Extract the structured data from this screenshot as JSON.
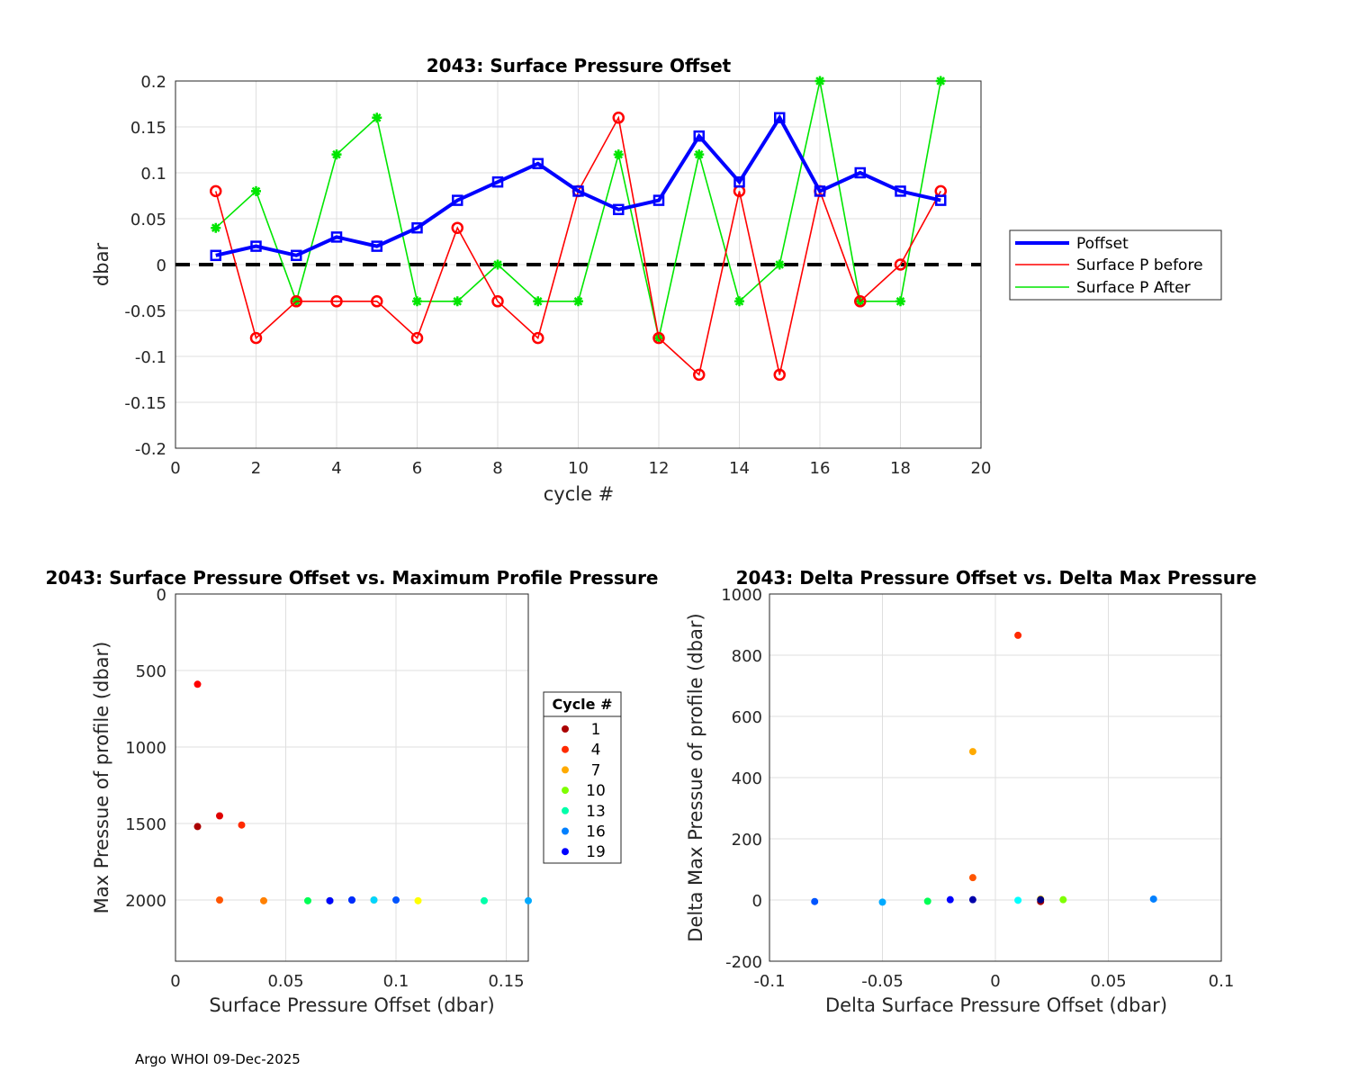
{
  "footer": "Argo WHOI 09-Dec-2025",
  "chart_data": [
    {
      "type": "line",
      "title": "2043: Surface Pressure Offset",
      "xlabel": "cycle #",
      "ylabel": "dbar",
      "xlim": [
        0,
        20
      ],
      "ylim": [
        -0.2,
        0.2
      ],
      "xticks": [
        "0",
        "2",
        "4",
        "6",
        "8",
        "10",
        "12",
        "14",
        "16",
        "18",
        "20"
      ],
      "yticks": [
        "0.2",
        "0.15",
        "0.1",
        "0.05",
        "0",
        "-0.05",
        "-0.1",
        "-0.15",
        "-0.2"
      ],
      "grid": true,
      "legend_position": "right",
      "x": [
        1,
        2,
        3,
        4,
        5,
        6,
        7,
        8,
        9,
        10,
        11,
        12,
        13,
        14,
        15,
        16,
        17,
        18,
        19
      ],
      "zero_line": {
        "y": 0,
        "style": "dashed",
        "color": "#000000"
      },
      "series": [
        {
          "name": "Poffset",
          "color": "#0000ff",
          "marker": "square",
          "values": [
            0.01,
            0.02,
            0.01,
            0.03,
            0.02,
            0.04,
            0.07,
            0.09,
            0.11,
            0.08,
            0.06,
            0.07,
            0.14,
            0.09,
            0.16,
            0.08,
            0.1,
            0.08,
            0.07
          ]
        },
        {
          "name": "Surface P before",
          "color": "#ff0000",
          "marker": "circle",
          "values": [
            0.08,
            -0.08,
            -0.04,
            -0.04,
            -0.04,
            -0.08,
            0.04,
            -0.04,
            -0.08,
            0.08,
            0.16,
            -0.08,
            -0.12,
            0.08,
            -0.12,
            0.08,
            -0.04,
            0.0,
            0.08
          ]
        },
        {
          "name": "Surface P After",
          "color": "#00e600",
          "marker": "asterisk",
          "values": [
            0.04,
            0.08,
            -0.04,
            0.12,
            0.16,
            -0.04,
            -0.04,
            0.0,
            -0.04,
            -0.04,
            0.12,
            -0.08,
            0.12,
            -0.04,
            0.0,
            0.2,
            -0.04,
            -0.04,
            0.2
          ]
        }
      ]
    },
    {
      "type": "scatter",
      "title": "2043: Surface Pressure Offset vs. Maximum Profile Pressure",
      "xlabel": "Surface Pressure Offset (dbar)",
      "ylabel": "Max Pressue of profile (dbar)",
      "xlim": [
        0,
        0.16
      ],
      "ylim": [
        0,
        2400
      ],
      "y_reversed": true,
      "xticks": [
        "0",
        "0.05",
        "0.1",
        "0.15"
      ],
      "yticks": [
        "0",
        "500",
        "1000",
        "1500",
        "2000"
      ],
      "grid": true,
      "legend_title": "Cycle #",
      "legend_position": "right",
      "legend_entries": [
        {
          "label": "1",
          "color": "#aa0000"
        },
        {
          "label": "4",
          "color": "#ff2a00"
        },
        {
          "label": "7",
          "color": "#ffaa00"
        },
        {
          "label": "10",
          "color": "#7fff00"
        },
        {
          "label": "13",
          "color": "#00ffaa"
        },
        {
          "label": "16",
          "color": "#0080ff"
        },
        {
          "label": "19",
          "color": "#0000ff"
        }
      ],
      "points": [
        {
          "cycle": 1,
          "x": 0.01,
          "y": 1520,
          "color": "#aa0000"
        },
        {
          "cycle": 2,
          "x": 0.02,
          "y": 1450,
          "color": "#e00000"
        },
        {
          "cycle": 3,
          "x": 0.01,
          "y": 590,
          "color": "#ff0000"
        },
        {
          "cycle": 4,
          "x": 0.03,
          "y": 1510,
          "color": "#ff2a00"
        },
        {
          "cycle": 5,
          "x": 0.02,
          "y": 2000,
          "color": "#ff5500"
        },
        {
          "cycle": 6,
          "x": 0.04,
          "y": 2005,
          "color": "#ff8000"
        },
        {
          "cycle": 7,
          "x": 0.07,
          "y": 2005,
          "color": "#ffaa00"
        },
        {
          "cycle": 8,
          "x": 0.09,
          "y": 2000,
          "color": "#ffd400"
        },
        {
          "cycle": 9,
          "x": 0.11,
          "y": 2005,
          "color": "#ffff00"
        },
        {
          "cycle": 10,
          "x": 0.08,
          "y": 2000,
          "color": "#7fff00"
        },
        {
          "cycle": 11,
          "x": 0.06,
          "y": 2005,
          "color": "#00ff55"
        },
        {
          "cycle": 12,
          "x": 0.07,
          "y": 2005,
          "color": "#00ff80"
        },
        {
          "cycle": 13,
          "x": 0.14,
          "y": 2005,
          "color": "#00ffaa"
        },
        {
          "cycle": 14,
          "x": 0.09,
          "y": 2000,
          "color": "#00d4ff"
        },
        {
          "cycle": 15,
          "x": 0.16,
          "y": 2005,
          "color": "#00aaff"
        },
        {
          "cycle": 16,
          "x": 0.08,
          "y": 2000,
          "color": "#0080ff"
        },
        {
          "cycle": 17,
          "x": 0.1,
          "y": 2000,
          "color": "#0055ff"
        },
        {
          "cycle": 18,
          "x": 0.08,
          "y": 2000,
          "color": "#002aff"
        },
        {
          "cycle": 19,
          "x": 0.07,
          "y": 2005,
          "color": "#0000ff"
        }
      ]
    },
    {
      "type": "scatter",
      "title": "2043: Delta Pressure Offset vs. Delta Max Pressure",
      "xlabel": "Delta Surface Pressure Offset (dbar)",
      "ylabel": "Delta Max Pressue of profile (dbar)",
      "xlim": [
        -0.1,
        0.1
      ],
      "ylim": [
        -200,
        1000
      ],
      "xticks": [
        "-0.1",
        "-0.05",
        "0",
        "0.05",
        "0.1"
      ],
      "yticks": [
        "-200",
        "0",
        "200",
        "400",
        "600",
        "800",
        "1000"
      ],
      "grid": true,
      "points": [
        {
          "x": 0.01,
          "y": 865,
          "color": "#ff2a00"
        },
        {
          "x": -0.01,
          "y": 485,
          "color": "#ffaa00"
        },
        {
          "x": -0.01,
          "y": 73,
          "color": "#ff5500"
        },
        {
          "x": 0.02,
          "y": -5,
          "color": "#aa0000"
        },
        {
          "x": 0.02,
          "y": 3,
          "color": "#ffd400"
        },
        {
          "x": 0.03,
          "y": 1,
          "color": "#7fff00"
        },
        {
          "x": 0.01,
          "y": -1,
          "color": "#00ffff"
        },
        {
          "x": -0.03,
          "y": -4,
          "color": "#00ff55"
        },
        {
          "x": -0.05,
          "y": -7,
          "color": "#00aaff"
        },
        {
          "x": -0.08,
          "y": -5,
          "color": "#0055ff"
        },
        {
          "x": -0.02,
          "y": 1,
          "color": "#0000ff"
        },
        {
          "x": -0.01,
          "y": 1,
          "color": "#0000aa"
        },
        {
          "x": 0.02,
          "y": 1,
          "color": "#000080"
        },
        {
          "x": 0.07,
          "y": 3,
          "color": "#0080ff"
        }
      ]
    }
  ]
}
